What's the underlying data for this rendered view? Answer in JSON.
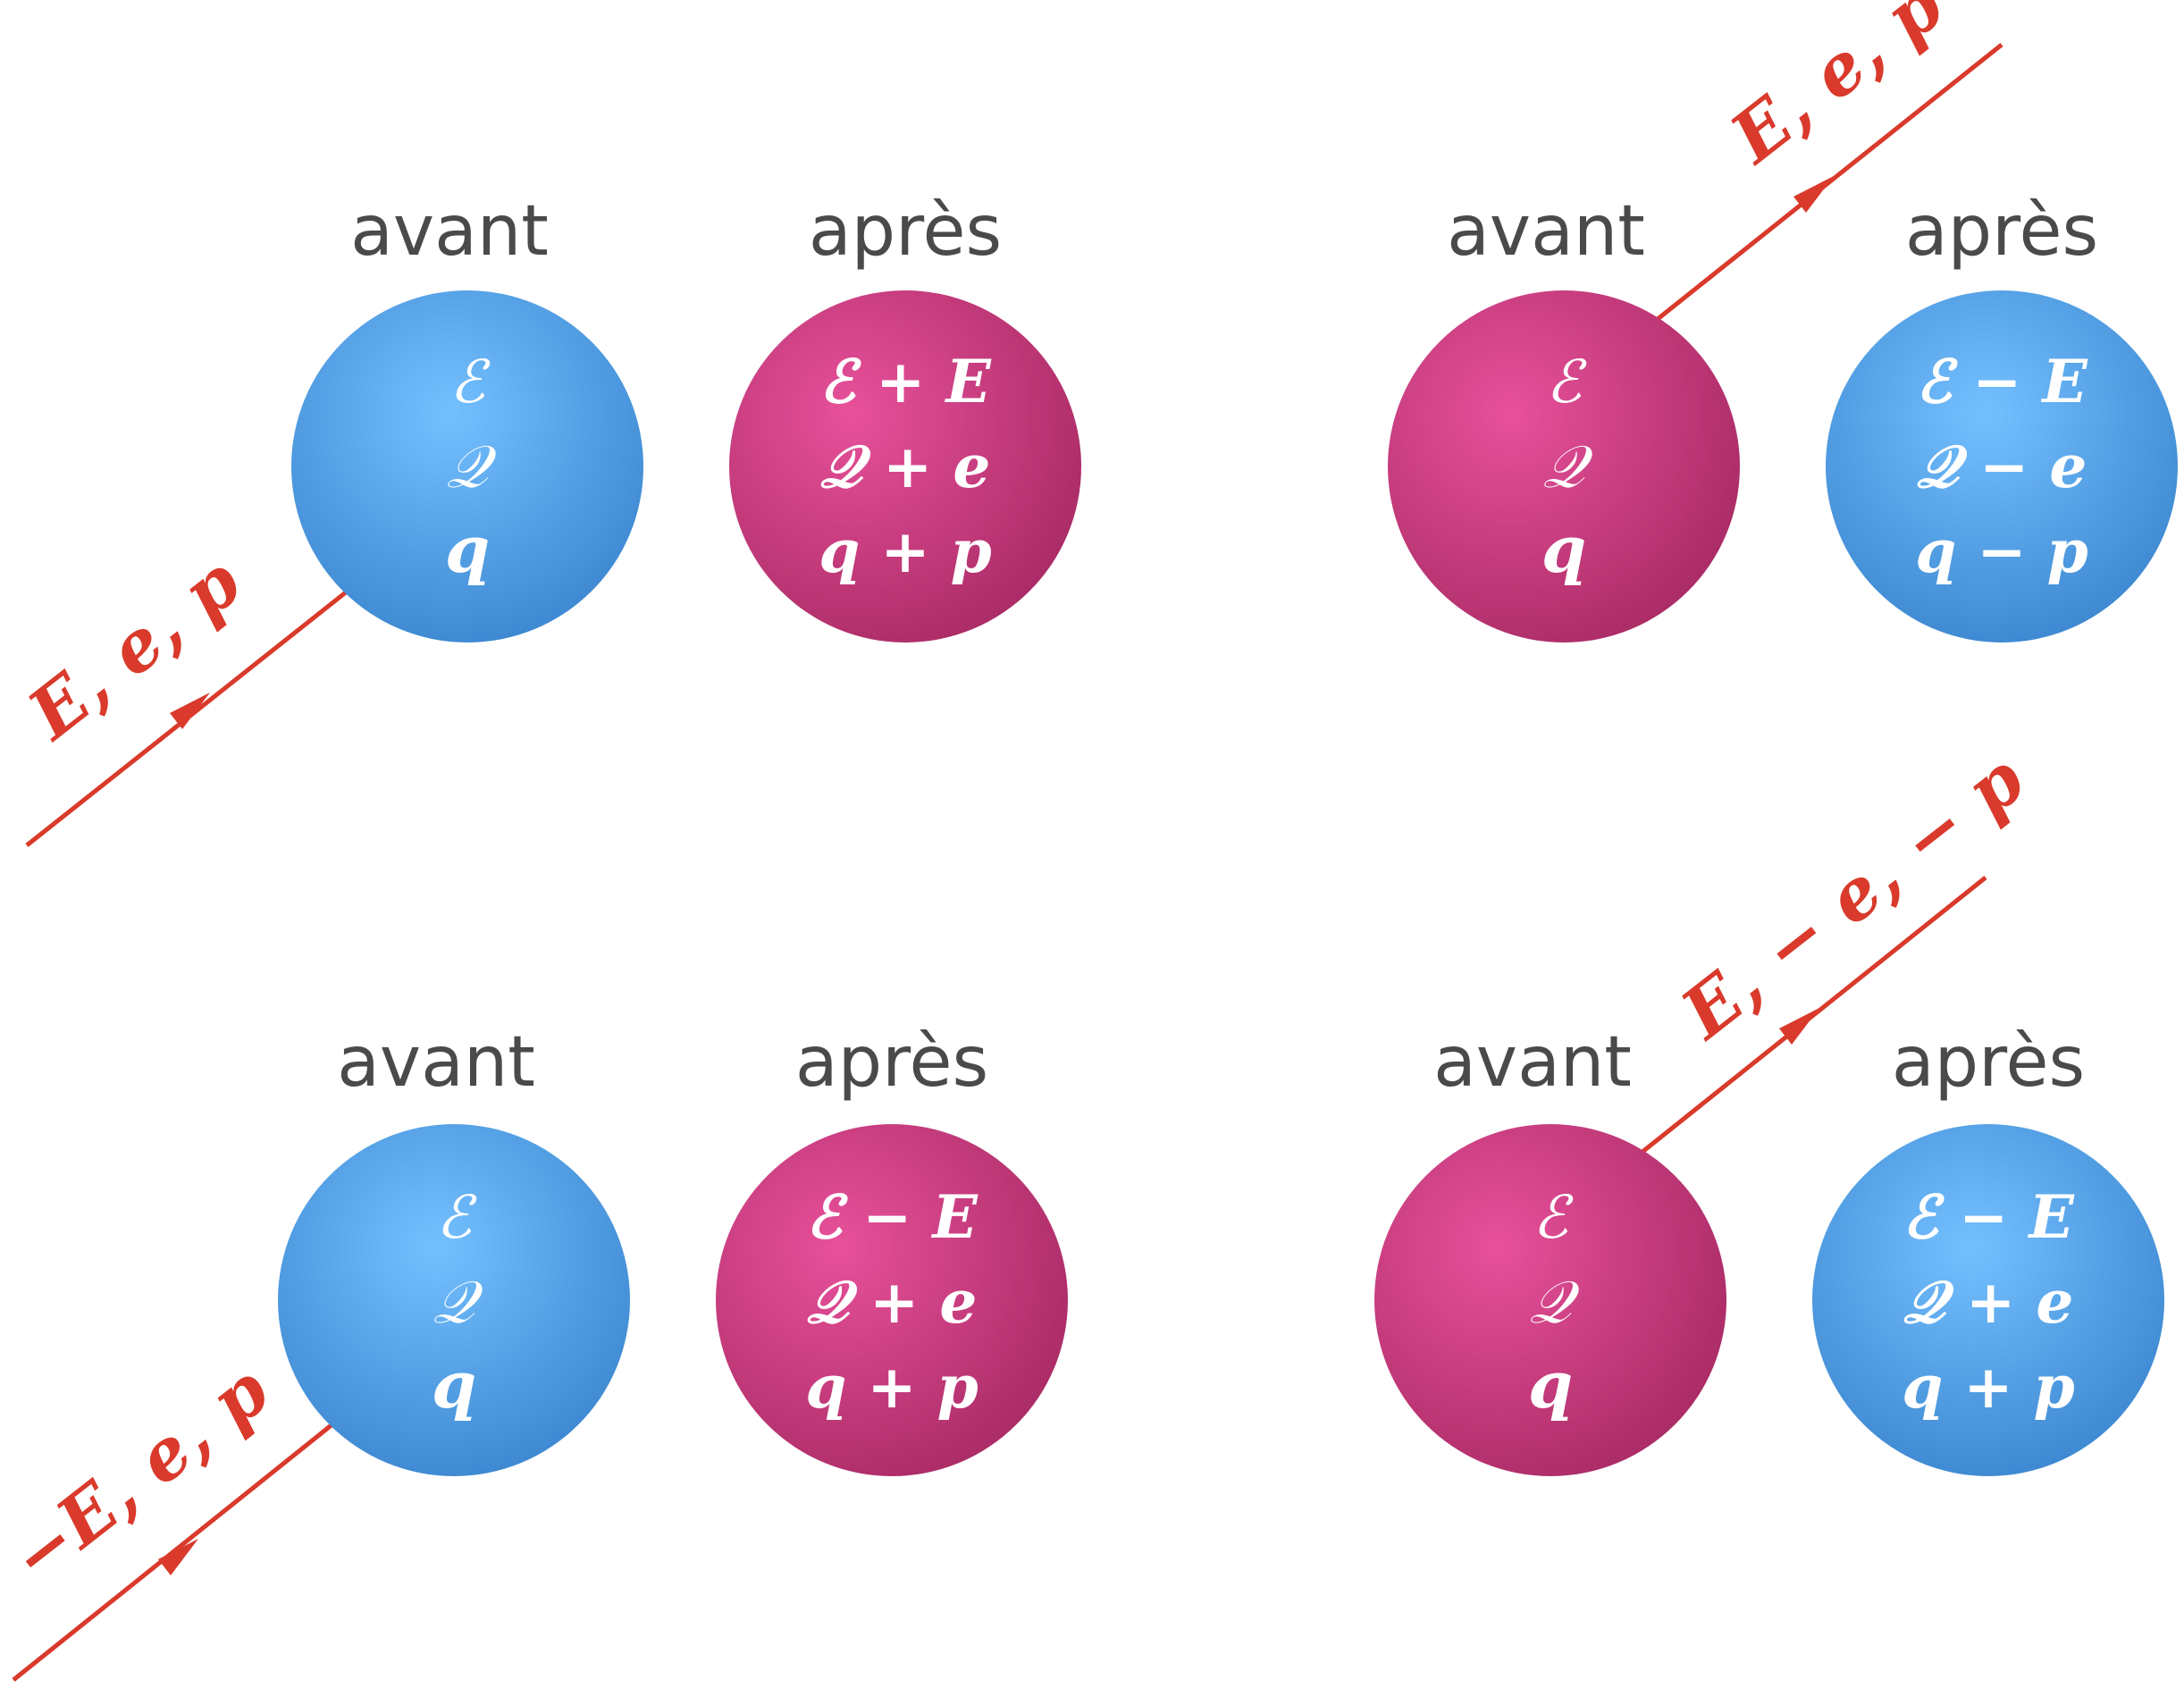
{
  "colors": {
    "blue_sphere": "#5aaae8",
    "pink_sphere": "#c83b7c",
    "line": "#d93a2b",
    "header_text": "#4a4a4a"
  },
  "panels": [
    {
      "before": {
        "header": "avant",
        "color": "blue",
        "lines": [
          "ℰ",
          "𝒬",
          "q"
        ]
      },
      "after": {
        "header": "après",
        "color": "pink",
        "lines": [
          "ℰ + E",
          "𝒬 + e",
          "q + p"
        ]
      },
      "particle": {
        "label": "E, e, p",
        "direction": "incoming"
      }
    },
    {
      "before": {
        "header": "avant",
        "color": "pink",
        "lines": [
          "ℰ",
          "𝒬",
          "q"
        ]
      },
      "after": {
        "header": "après",
        "color": "blue",
        "lines": [
          "ℰ − E",
          "𝒬 − e",
          "q − p"
        ]
      },
      "particle": {
        "label": "E, e, p",
        "direction": "outgoing"
      }
    },
    {
      "before": {
        "header": "avant",
        "color": "blue",
        "lines": [
          "ℰ",
          "𝒬",
          "q"
        ]
      },
      "after": {
        "header": "après",
        "color": "pink",
        "lines": [
          "ℰ − E",
          "𝒬 + e",
          "q + p"
        ]
      },
      "particle": {
        "label": "−E, e, p",
        "direction": "incoming"
      }
    },
    {
      "before": {
        "header": "avant",
        "color": "pink",
        "lines": [
          "ℰ",
          "𝒬",
          "q"
        ]
      },
      "after": {
        "header": "après",
        "color": "blue",
        "lines": [
          "ℰ − E",
          "𝒬 + e",
          "q + p"
        ]
      },
      "particle": {
        "label": "E, − e, − p",
        "direction": "outgoing"
      }
    }
  ]
}
